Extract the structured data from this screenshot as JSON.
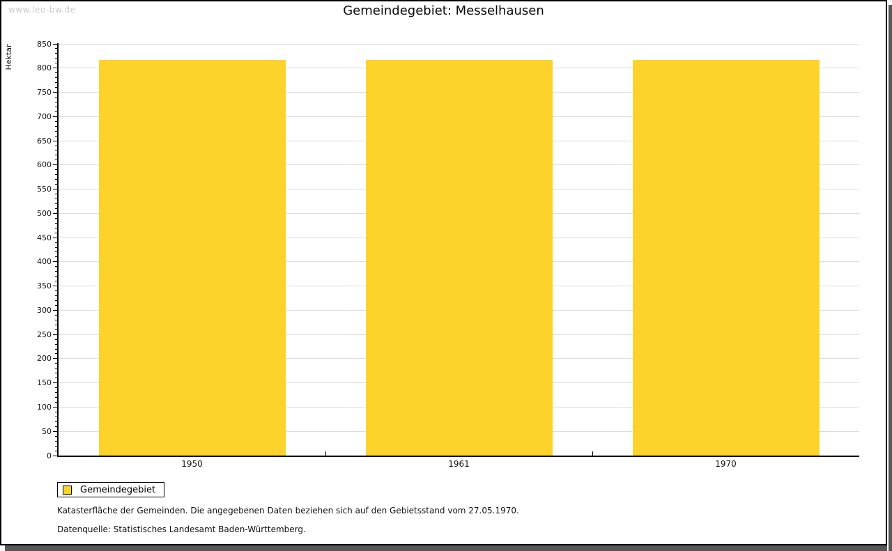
{
  "watermark": "www.leo-bw.de",
  "chart_data": {
    "type": "bar",
    "title": "Gemeindegebiet: Messelhausen",
    "ylabel": "Hektar",
    "categories": [
      "1950",
      "1961",
      "1970"
    ],
    "series": [
      {
        "name": "Gemeindegebiet",
        "values": [
          817,
          817,
          817
        ]
      }
    ],
    "ylim": [
      0,
      850
    ],
    "ytick_step": 50,
    "yminor_step": 10,
    "grid": true,
    "legend_position": "bottom-left",
    "bar_color": "#FDD32B",
    "grid_color": "#dcdcdc",
    "axis_color": "#000000"
  },
  "legend": {
    "label": "Gemeindegebiet"
  },
  "notes": [
    "Katasterfläche der Gemeinden. Die angegebenen Daten beziehen sich auf den Gebietsstand vom 27.05.1970.",
    "Datenquelle: Statistisches Landesamt Baden-Württemberg."
  ]
}
